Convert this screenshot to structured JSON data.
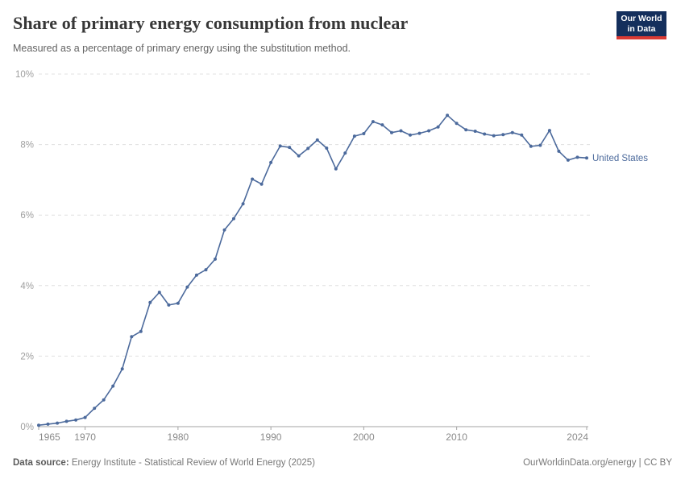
{
  "header": {
    "title": "Share of primary energy consumption from nuclear",
    "subtitle": "Measured as a percentage of primary energy using the substitution method.",
    "logo": {
      "line1": "Our World",
      "line2": "in Data",
      "bg_color": "#142F5C",
      "stripe_color": "#D93A34"
    }
  },
  "chart_data": {
    "type": "line",
    "title": "Share of primary energy consumption from nuclear",
    "subtitle": "Measured as a percentage of primary energy using the substitution method.",
    "xlabel": "",
    "ylabel": "",
    "xlim": [
      1965,
      2024
    ],
    "ylim": [
      0,
      10
    ],
    "grid": "horizontal-dashed",
    "legend_position": "end-of-line-label",
    "x_ticks": [
      {
        "value": 1965,
        "label": "1965"
      },
      {
        "value": 1970,
        "label": "1970"
      },
      {
        "value": 1980,
        "label": "1980"
      },
      {
        "value": 1990,
        "label": "1990"
      },
      {
        "value": 2000,
        "label": "2000"
      },
      {
        "value": 2010,
        "label": "2010"
      },
      {
        "value": 2024,
        "label": "2024"
      }
    ],
    "y_ticks": [
      {
        "value": 0,
        "label": "0%"
      },
      {
        "value": 2,
        "label": "2%"
      },
      {
        "value": 4,
        "label": "4%"
      },
      {
        "value": 6,
        "label": "6%"
      },
      {
        "value": 8,
        "label": "8%"
      },
      {
        "value": 10,
        "label": "10%"
      }
    ],
    "series": [
      {
        "name": "United States",
        "color": "#4C6A9C",
        "x": [
          1965,
          1966,
          1967,
          1968,
          1969,
          1970,
          1971,
          1972,
          1973,
          1974,
          1975,
          1976,
          1977,
          1978,
          1979,
          1980,
          1981,
          1982,
          1983,
          1984,
          1985,
          1986,
          1987,
          1988,
          1989,
          1990,
          1991,
          1992,
          1993,
          1994,
          1995,
          1996,
          1997,
          1998,
          1999,
          2000,
          2001,
          2002,
          2003,
          2004,
          2005,
          2006,
          2007,
          2008,
          2009,
          2010,
          2011,
          2012,
          2013,
          2014,
          2015,
          2016,
          2017,
          2018,
          2019,
          2020,
          2021,
          2022,
          2023,
          2024
        ],
        "values": [
          0.04,
          0.07,
          0.1,
          0.15,
          0.19,
          0.26,
          0.52,
          0.76,
          1.15,
          1.64,
          2.55,
          2.7,
          3.52,
          3.81,
          3.45,
          3.5,
          3.96,
          4.3,
          4.45,
          4.75,
          5.58,
          5.9,
          6.32,
          7.02,
          6.88,
          7.49,
          7.96,
          7.92,
          7.68,
          7.89,
          8.13,
          7.9,
          7.31,
          7.76,
          8.24,
          8.31,
          8.65,
          8.56,
          8.34,
          8.39,
          8.27,
          8.32,
          8.39,
          8.5,
          8.83,
          8.6,
          8.42,
          8.38,
          8.3,
          8.25,
          8.28,
          8.34,
          8.27,
          7.95,
          7.98,
          8.4,
          7.81,
          7.56,
          7.64,
          7.62
        ]
      }
    ]
  },
  "footer": {
    "source_label": "Data source:",
    "source_text": "Energy Institute - Statistical Review of World Energy (2025)",
    "link_text": "OurWorldinData.org/energy | CC BY"
  }
}
